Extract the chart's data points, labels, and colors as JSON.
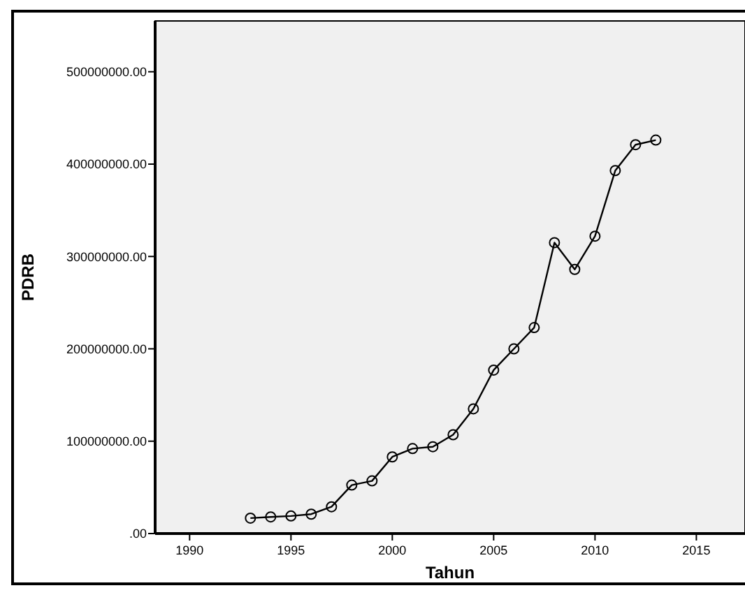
{
  "chart_data": {
    "type": "line",
    "xlabel": "Tahun",
    "ylabel": "PDRB",
    "x": [
      1993,
      1994,
      1995,
      1996,
      1997,
      1998,
      1999,
      2000,
      2001,
      2002,
      2003,
      2004,
      2005,
      2006,
      2007,
      2008,
      2009,
      2010,
      2011,
      2012,
      2013
    ],
    "series": [
      {
        "color": "#000000",
        "values": [
          16700000,
          18000000,
          19000000,
          21000000,
          29000000,
          52500000,
          57000000,
          83000000,
          92000000,
          94000000,
          107000000,
          135000000,
          177000000,
          200000000,
          223000000,
          315000000,
          286000000,
          322000000,
          393000000,
          421000000,
          426000000
        ]
      }
    ],
    "xlim": [
      1988.3,
      2017.4
    ],
    "xticks": [
      1990,
      1995,
      2000,
      2005,
      2010,
      2015
    ],
    "ylim": [
      0,
      555000000
    ],
    "yticks": [
      {
        "value": 0,
        "label": ".00"
      },
      {
        "value": 100000000,
        "label": "100000000.00"
      },
      {
        "value": 200000000,
        "label": "200000000.00"
      },
      {
        "value": 300000000,
        "label": "300000000.00"
      },
      {
        "value": 400000000,
        "label": "400000000.00"
      },
      {
        "value": 500000000,
        "label": "500000000.00"
      }
    ],
    "grid": false,
    "marker": "circle",
    "line_style": "solid"
  }
}
